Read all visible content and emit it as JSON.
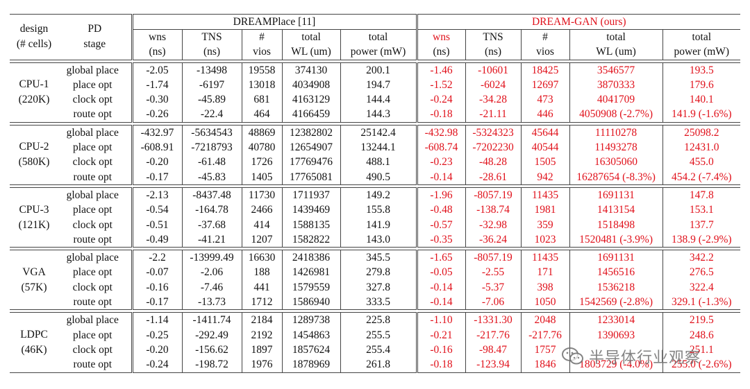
{
  "headers": {
    "design": "design",
    "design_sub": "(# cells)",
    "stage": "PD",
    "stage_sub": "stage",
    "baseline": "DREAMPlace [11]",
    "ours": "DREAM-GAN (ours)",
    "cols": [
      {
        "l1": "wns",
        "l2": "(ns)"
      },
      {
        "l1": "TNS",
        "l2": "(ns)"
      },
      {
        "l1": "#",
        "l2": "vios"
      },
      {
        "l1": "total",
        "l2": "WL (um)"
      },
      {
        "l1": "total",
        "l2": "power (mW)"
      }
    ]
  },
  "groups": [
    {
      "name": "CPU-1",
      "cells": "(220K)",
      "rows": [
        {
          "stage": "global place",
          "a": [
            "-2.05",
            "-13498",
            "19558",
            "374130",
            "200.1"
          ],
          "b": [
            "-1.46",
            "-10601",
            "18425",
            "3546577",
            "193.5"
          ]
        },
        {
          "stage": "place opt",
          "a": [
            "-1.74",
            "-6197",
            "13018",
            "4034908",
            "194.7"
          ],
          "b": [
            "-1.52",
            "-6024",
            "12697",
            "3870333",
            "179.6"
          ]
        },
        {
          "stage": "clock opt",
          "a": [
            "-0.30",
            "-45.89",
            "681",
            "4163129",
            "144.4"
          ],
          "b": [
            "-0.24",
            "-34.28",
            "473",
            "4041709",
            "140.1"
          ]
        },
        {
          "stage": "route opt",
          "a": [
            "-0.26",
            "-22.4",
            "464",
            "4166459",
            "144.3"
          ],
          "b": [
            "-0.18",
            "-21.11",
            "446",
            "4050908 (-2.7%)",
            "141.9 (-1.6%)"
          ]
        }
      ]
    },
    {
      "name": "CPU-2",
      "cells": "(580K)",
      "rows": [
        {
          "stage": "global place",
          "a": [
            "-432.97",
            "-5634543",
            "48869",
            "12382802",
            "25142.4"
          ],
          "b": [
            "-432.98",
            "-5324323",
            "45644",
            "11110278",
            "25098.2"
          ]
        },
        {
          "stage": "place opt",
          "a": [
            "-608.91",
            "-7218793",
            "40780",
            "12654907",
            "13244.1"
          ],
          "b": [
            "-608.74",
            "-7202230",
            "40544",
            "11493278",
            "12431.0"
          ]
        },
        {
          "stage": "clock opt",
          "a": [
            "-0.20",
            "-61.48",
            "1726",
            "17769476",
            "488.1"
          ],
          "b": [
            "-0.23",
            "-48.28",
            "1505",
            "16305060",
            "455.0"
          ]
        },
        {
          "stage": "route opt",
          "a": [
            "-0.17",
            "-45.83",
            "1405",
            "17765081",
            "490.5"
          ],
          "b": [
            "-0.14",
            "-28.61",
            "942",
            "16287654 (-8.3%)",
            "454.2 (-7.4%)"
          ]
        }
      ]
    },
    {
      "name": "CPU-3",
      "cells": "(121K)",
      "rows": [
        {
          "stage": "global place",
          "a": [
            "-2.13",
            "-8437.48",
            "11730",
            "1711937",
            "149.2"
          ],
          "b": [
            "-1.96",
            "-8057.19",
            "11435",
            "1691131",
            "147.8"
          ]
        },
        {
          "stage": "place opt",
          "a": [
            "-0.54",
            "-164.78",
            "2466",
            "1439469",
            "155.8"
          ],
          "b": [
            "-0.48",
            "-138.74",
            "1981",
            "1413154",
            "153.1"
          ]
        },
        {
          "stage": "clock opt",
          "a": [
            "-0.51",
            "-37.68",
            "414",
            "1588135",
            "141.9"
          ],
          "b": [
            "-0.57",
            "-32.98",
            "359",
            "1518498",
            "137.7"
          ]
        },
        {
          "stage": "route opt",
          "a": [
            "-0.49",
            "-41.21",
            "1207",
            "1582822",
            "143.0"
          ],
          "b": [
            "-0.35",
            "-36.24",
            "1023",
            "1520481 (-3.9%)",
            "138.9 (-2.9%)"
          ]
        }
      ]
    },
    {
      "name": "VGA",
      "cells": "(57K)",
      "rows": [
        {
          "stage": "global place",
          "a": [
            "-2.2",
            "-13999.49",
            "16630",
            "2418386",
            "345.5"
          ],
          "b": [
            "-1.65",
            "-8057.19",
            "11435",
            "1691131",
            "342.2"
          ]
        },
        {
          "stage": "place opt",
          "a": [
            "-0.07",
            "-2.06",
            "188",
            "1426981",
            "279.8"
          ],
          "b": [
            "-0.05",
            "-2.55",
            "171",
            "1456516",
            "276.5"
          ]
        },
        {
          "stage": "clock opt",
          "a": [
            "-0.16",
            "-7.46",
            "441",
            "1579559",
            "327.8"
          ],
          "b": [
            "-0.14",
            "-5.37",
            "398",
            "1536218",
            "322.4"
          ]
        },
        {
          "stage": "route opt",
          "a": [
            "-0.17",
            "-13.73",
            "1712",
            "1586940",
            "333.5"
          ],
          "b": [
            "-0.14",
            "-7.06",
            "1050",
            "1542569 (-2.8%)",
            "329.1 (-1.3%)"
          ]
        }
      ]
    },
    {
      "name": "LDPC",
      "cells": "(46K)",
      "rows": [
        {
          "stage": "global place",
          "a": [
            "-1.14",
            "-1411.74",
            "2184",
            "1289738",
            "225.8"
          ],
          "b": [
            "-1.10",
            "-1331.30",
            "2048",
            "1233014",
            "219.5"
          ]
        },
        {
          "stage": "place opt",
          "a": [
            "-0.25",
            "-292.49",
            "2192",
            "1454863",
            "255.5"
          ],
          "b": [
            "-0.21",
            "-217.76",
            "-217.76",
            "1390693",
            "248.6"
          ]
        },
        {
          "stage": "clock opt",
          "a": [
            "-0.20",
            "-156.62",
            "1897",
            "1857624",
            "255.4"
          ],
          "b": [
            "-0.16",
            "-98.47",
            "1757",
            "",
            "251.1"
          ]
        },
        {
          "stage": "route opt",
          "a": [
            "-0.24",
            "-198.72",
            "1976",
            "1878969",
            "261.8"
          ],
          "b": [
            "-0.18",
            "-123.94",
            "1846",
            "1803729 (-4.0%)",
            "255.0 (-2.6%)"
          ]
        }
      ]
    }
  ],
  "watermark": "半导体行业观察",
  "colors": {
    "ours": "#e0101a",
    "rule": "#444444",
    "watermark": "#6e6e6e"
  }
}
